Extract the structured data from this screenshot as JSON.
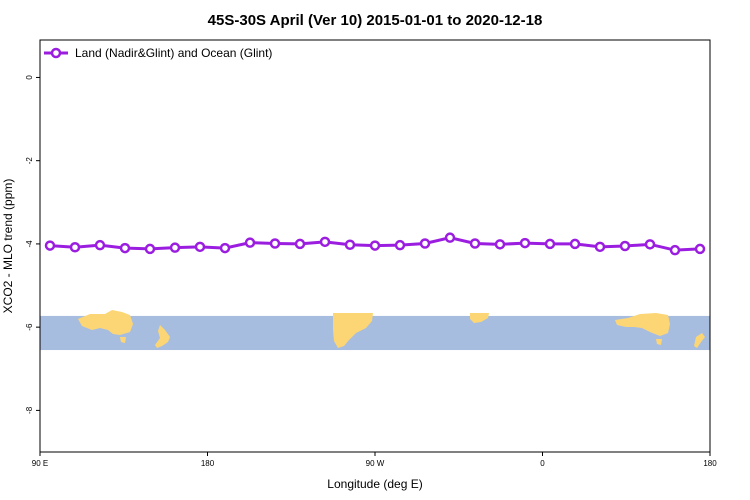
{
  "chart_data": {
    "type": "line",
    "title": "45S-30S April (Ver 10)   2015-01-01 to 2020-12-18",
    "xlabel": "Longitude (deg E)",
    "ylabel": "XCO2 - MLO trend (ppm)",
    "xlim": [
      90,
      450
    ],
    "ylim": [
      -9.0,
      0.9
    ],
    "x_ticks": [
      {
        "value": 90,
        "label": "90 E"
      },
      {
        "value": 180,
        "label": "180"
      },
      {
        "value": 270,
        "label": "90 W"
      },
      {
        "value": 360,
        "label": "0"
      },
      {
        "value": 450,
        "label": "180"
      }
    ],
    "x_ticks_unlabeled": [],
    "y_ticks": [
      0,
      -2,
      -4,
      -6,
      -8
    ],
    "legend": {
      "position": "top-left"
    },
    "series": [
      {
        "name": "Land (Nadir&Glint) and Ocean (Glint)",
        "color": "#9b1ee0",
        "x": [
          97.5,
          112.5,
          127.5,
          142.5,
          157.5,
          172.5,
          187.5,
          202.5,
          217.5,
          232.5,
          247.5,
          262.5,
          277.5,
          292.5,
          307.5,
          322.5,
          337.5,
          352.5,
          367.5,
          382.5,
          397.5,
          412.5,
          427.5,
          442.5
        ],
        "values": [
          -4.04,
          -4.08,
          -4.03,
          -4.1,
          -4.12,
          -4.09,
          -4.07,
          -4.1,
          -3.97,
          -3.99,
          -4.0,
          -3.95,
          -4.02,
          -4.04,
          -4.03,
          -3.99,
          -3.85,
          -3.99,
          -4.01,
          -3.98,
          -4.0,
          -4.0,
          -4.07,
          -4.05
        ]
      }
    ],
    "values_extra_points": [
      {
        "x": 442.5,
        "y": -4.01
      },
      {
        "x": 457.5,
        "y": -4.15
      },
      {
        "x": 472.5,
        "y": -4.12
      }
    ],
    "map_strip": {
      "ocean_color": "#a7bde0",
      "land_color": "#fcd675",
      "y_range": [
        -6.55,
        -5.73
      ]
    }
  }
}
